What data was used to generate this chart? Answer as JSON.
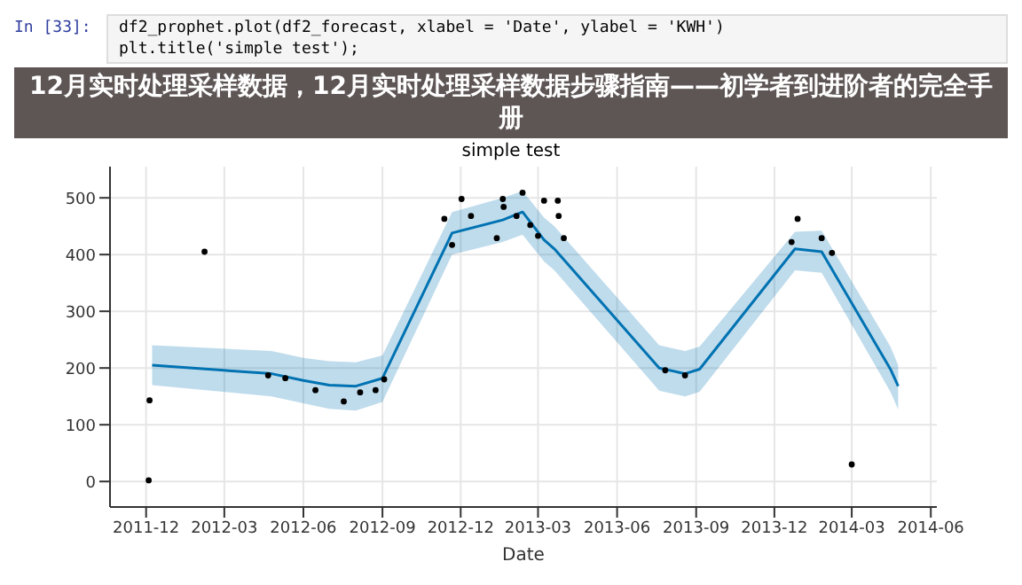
{
  "chart_data": {
    "type": "scatter",
    "title": "12月实时处理采样数据，12月实时处理采样数据步骤指南——初学者到进阶者的完全手册",
    "subtitle": "simple test",
    "xlabel": "Date",
    "annotations": [
      "In [33]:",
      "df2_prophet.plot(df2_forecast, xlabel = 'Date', ylabel = 'KWH')",
      "plt.title('simple test');"
    ],
    "xlim": [
      "2011-10-20",
      "2014-06-08"
    ],
    "xticks": [
      "2011-12",
      "2012-03",
      "2012-06",
      "2012-09",
      "2012-12",
      "2013-03",
      "2013-06",
      "2013-09",
      "2013-12",
      "2014-03",
      "2014-06"
    ],
    "ylim": [
      -45,
      555
    ],
    "yticks": [
      0,
      100,
      200,
      300,
      400,
      500
    ],
    "grid": true,
    "series": [
      {
        "marker": "circle",
        "color": "#000000",
        "x": [
          "2011-12-04",
          "2011-12-05",
          "2012-02-07",
          "2012-04-21",
          "2012-05-11",
          "2012-06-15",
          "2012-07-18",
          "2012-08-06",
          "2012-08-24",
          "2012-09-03",
          "2012-11-12",
          "2012-11-21",
          "2012-12-02",
          "2012-12-13",
          "2013-01-12",
          "2013-01-19",
          "2013-01-20",
          "2013-02-04",
          "2013-02-11",
          "2013-02-20",
          "2013-03-01",
          "2013-03-08",
          "2013-03-24",
          "2013-03-25",
          "2013-03-31",
          "2013-07-27",
          "2013-08-19",
          "2013-12-21",
          "2013-12-28",
          "2014-01-25",
          "2014-02-06",
          "2014-03-01"
        ],
        "values": [
          2,
          143,
          405,
          187,
          182,
          161,
          141,
          157,
          161,
          180,
          463,
          417,
          498,
          468,
          429,
          498,
          484,
          468,
          509,
          452,
          433,
          495,
          495,
          468,
          429,
          196,
          187,
          422,
          463,
          429,
          403,
          30
        ]
      },
      {
        "type": "line",
        "color": "#0072b2",
        "x": [
          "2011-12-08",
          "2012-04-25",
          "2012-06-01",
          "2012-07-01",
          "2012-08-01",
          "2012-09-01",
          "2012-11-21",
          "2013-01-19",
          "2013-02-11",
          "2013-03-08",
          "2013-03-20",
          "2013-07-20",
          "2013-08-19",
          "2013-09-05",
          "2013-12-25",
          "2014-01-25",
          "2014-04-15",
          "2014-04-24"
        ],
        "values": [
          205,
          190,
          178,
          170,
          168,
          182,
          438,
          461,
          475,
          426,
          410,
          200,
          190,
          198,
          410,
          405,
          198,
          168
        ],
        "lower": [
          170,
          150,
          138,
          128,
          125,
          140,
          400,
          422,
          435,
          388,
          372,
          160,
          150,
          158,
          372,
          368,
          158,
          127
        ],
        "upper": [
          240,
          230,
          218,
          212,
          210,
          222,
          475,
          500,
          512,
          465,
          450,
          240,
          230,
          238,
          440,
          442,
          238,
          205
        ]
      }
    ]
  }
}
